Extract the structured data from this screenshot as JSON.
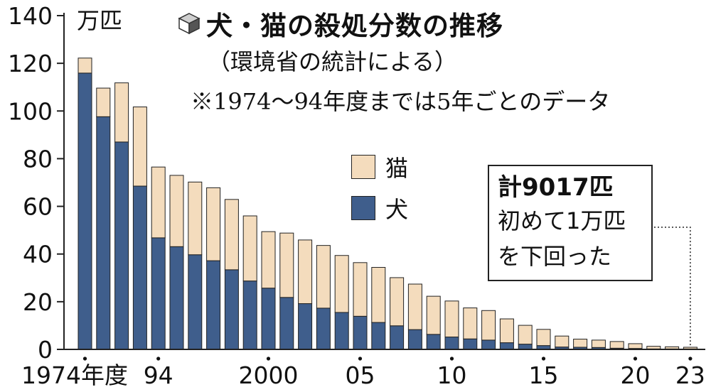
{
  "title": "犬・猫の殺処分数の推移",
  "title_icon": "cube-icon",
  "source": "（環境省の統計による）",
  "note": "※1974〜94年度までは5年ごとのデータ",
  "unit": "万匹",
  "colors": {
    "dog": "#3f5e8c",
    "cat": "#f4dcbd",
    "edge": "#222222"
  },
  "legend": [
    {
      "key": "cat",
      "label": "猫"
    },
    {
      "key": "dog",
      "label": "犬"
    }
  ],
  "callout": {
    "title": "計9017匹",
    "lines": [
      "初めて1万匹",
      "を下回った"
    ]
  },
  "chart_data": {
    "type": "bar",
    "stacked": true,
    "categories": [
      "1974",
      "1979",
      "1984",
      "1989",
      "1994",
      "1995",
      "1996",
      "1997",
      "1998",
      "1999",
      "2000",
      "2001",
      "2002",
      "2003",
      "2004",
      "2005",
      "2006",
      "2007",
      "2008",
      "2009",
      "2010",
      "2011",
      "2012",
      "2013",
      "2014",
      "2015",
      "2016",
      "2017",
      "2018",
      "2019",
      "2020",
      "2021",
      "2022",
      "2023"
    ],
    "series": [
      {
        "name": "犬",
        "values": [
          115.9,
          97.6,
          87.0,
          68.5,
          46.8,
          43.1,
          39.7,
          37.2,
          33.4,
          28.7,
          25.7,
          21.8,
          19.2,
          17.3,
          15.5,
          13.9,
          11.3,
          9.9,
          8.3,
          6.3,
          5.2,
          4.4,
          3.9,
          2.8,
          2.2,
          1.6,
          1.0,
          0.9,
          0.8,
          0.5,
          0.4,
          0.2,
          0.2,
          0.2
        ]
      },
      {
        "name": "猫",
        "values": [
          6.3,
          12.0,
          24.8,
          33.2,
          29.7,
          29.9,
          30.5,
          30.6,
          29.5,
          27.3,
          23.7,
          27.0,
          26.7,
          26.3,
          23.9,
          22.5,
          23.1,
          20.2,
          19.1,
          16.0,
          15.1,
          13.0,
          12.4,
          10.0,
          7.9,
          6.8,
          4.6,
          3.4,
          3.1,
          2.8,
          2.0,
          1.1,
          0.9,
          0.7
        ]
      }
    ],
    "total_2023": 0.9,
    "x_tick_labels": [
      "1974年度",
      "94",
      "2000",
      "05",
      "10",
      "15",
      "20",
      "23"
    ],
    "x_tick_categories": [
      "1974",
      "1994",
      "2000",
      "2005",
      "2010",
      "2015",
      "2020",
      "2023"
    ],
    "y_ticks": [
      0,
      20,
      40,
      60,
      80,
      100,
      120,
      140
    ],
    "ylim": [
      0,
      140
    ],
    "ylabel": "万匹",
    "grid": false,
    "legend_position": "center"
  }
}
